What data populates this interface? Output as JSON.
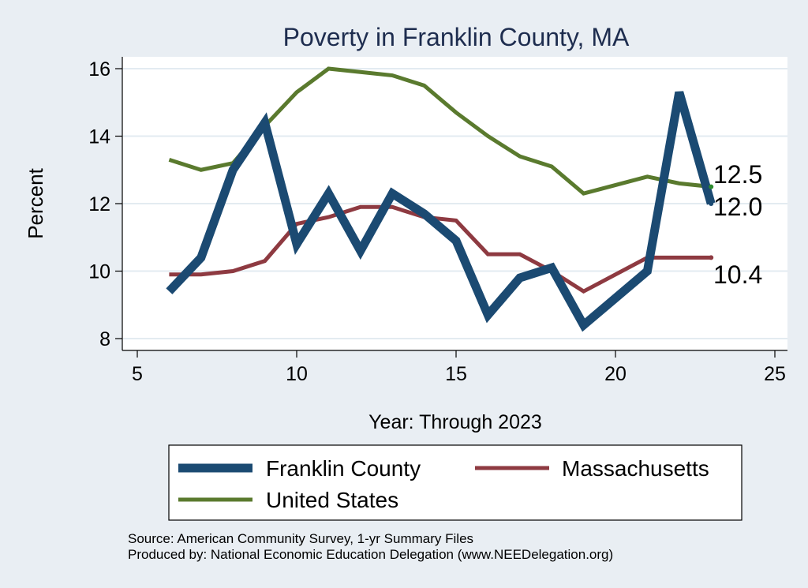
{
  "chart_data": {
    "type": "line",
    "title": "Poverty in Franklin County, MA",
    "xlabel": "Year: Through 2023",
    "ylabel": "Percent",
    "xlim": [
      5,
      25
    ],
    "ylim": [
      8,
      16
    ],
    "x_ticks": [
      5,
      10,
      15,
      20,
      25
    ],
    "y_ticks": [
      8,
      10,
      12,
      14,
      16
    ],
    "grid": "horizontal",
    "legend_position": "bottom",
    "series": [
      {
        "name": "Franklin County",
        "color": "#1b4a72",
        "x": [
          6,
          7,
          8,
          9,
          10,
          11,
          12,
          13,
          14,
          15,
          16,
          17,
          18,
          19,
          21,
          22,
          23
        ],
        "values": [
          9.4,
          10.4,
          13.0,
          14.4,
          10.8,
          12.3,
          10.6,
          12.3,
          11.7,
          10.9,
          8.7,
          9.8,
          10.1,
          8.4,
          10.0,
          15.3,
          12.0
        ],
        "end_label": "12.0"
      },
      {
        "name": "Massachusetts",
        "color": "#8e3a41",
        "x": [
          6,
          7,
          8,
          9,
          10,
          11,
          12,
          13,
          14,
          15,
          16,
          17,
          18,
          19,
          21,
          22,
          23
        ],
        "values": [
          9.9,
          9.9,
          10.0,
          10.3,
          11.4,
          11.6,
          11.9,
          11.9,
          11.6,
          11.5,
          10.5,
          10.5,
          10.0,
          9.4,
          10.4,
          10.4,
          10.4
        ],
        "end_label": "10.4"
      },
      {
        "name": "United States",
        "color": "#5a7a2e",
        "x": [
          6,
          7,
          8,
          9,
          10,
          11,
          12,
          13,
          14,
          15,
          16,
          17,
          18,
          19,
          21,
          22,
          23
        ],
        "values": [
          13.3,
          13.0,
          13.2,
          14.3,
          15.3,
          16.0,
          15.9,
          15.8,
          15.5,
          14.7,
          14.0,
          13.4,
          13.1,
          12.3,
          12.8,
          12.6,
          12.5
        ],
        "end_label": "12.5"
      }
    ],
    "notes": [
      "Source: American Community Survey, 1-yr Summary Files",
      "Produced by: National Economic Education Delegation (www.NEEDelegation.org)"
    ]
  }
}
